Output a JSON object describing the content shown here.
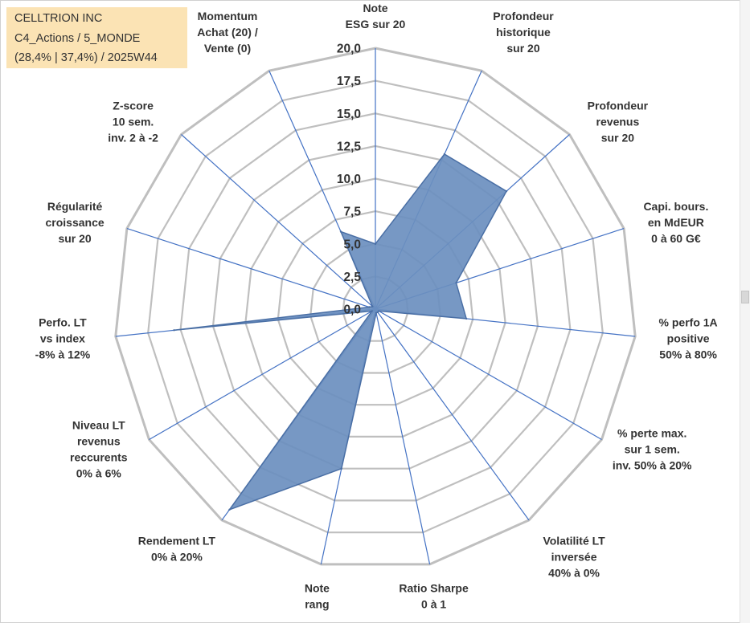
{
  "info_box": {
    "line1": "CELLTRION INC",
    "line2": "C4_Actions / 5_MONDE",
    "line3": "(28,4% | 37,4%) / 2025W44"
  },
  "colors": {
    "grid": "#bfbfbf",
    "spoke": "#4472c4",
    "fill": "#6b8fbf",
    "fill_stroke": "#4a6fa5",
    "info_bg": "#fbe3b4"
  },
  "chart_data": {
    "type": "radar",
    "rmin": 0,
    "rmax": 20,
    "tick_step": 2.5,
    "tick_labels": [
      "0,0",
      "2,5",
      "5,0",
      "7,5",
      "10,0",
      "12,5",
      "15,0",
      "17,5",
      "20,0"
    ],
    "grid": true,
    "axes": [
      {
        "label": [
          "Note",
          "ESG sur 20"
        ],
        "value": 5.0
      },
      {
        "label": [
          "Profondeur",
          "historique",
          "sur 20"
        ],
        "value": 13.0
      },
      {
        "label": [
          "Profondeur",
          "revenus",
          "sur 20"
        ],
        "value": 13.5
      },
      {
        "label": [
          "Capi. bours.",
          "en MdEUR",
          "0 à 60 G€"
        ],
        "value": 6.5
      },
      {
        "label": [
          "% perfo 1A",
          "positive",
          "50% à 80%"
        ],
        "value": 7.0
      },
      {
        "label": [
          "% perte max.",
          "sur 1 sem.",
          "inv. 50% à 20%"
        ],
        "value": 0.3
      },
      {
        "label": [
          "Volatilité LT",
          "inversée",
          "40% à 0%"
        ],
        "value": 0.3
      },
      {
        "label": [
          "Ratio Sharpe",
          "0 à 1"
        ],
        "value": 0.3
      },
      {
        "label": [
          "Note",
          "rang"
        ],
        "value": 12.5
      },
      {
        "label": [
          "Rendement LT",
          "0% à 20%"
        ],
        "value": 19.0
      },
      {
        "label": [
          "Niveau LT",
          "revenus",
          "reccurents",
          "0% à 6%"
        ],
        "value": 0.3
      },
      {
        "label": [
          "Perfo. LT",
          "vs index",
          "-8% à 12%"
        ],
        "value": 15.5
      },
      {
        "label": [
          "Régularité",
          "croissance",
          "sur 20"
        ],
        "value": 0.5
      },
      {
        "label": [
          "Z-score",
          "10 sem.",
          "inv. 2 à -2"
        ],
        "value": 0.3
      },
      {
        "label": [
          "Momentum",
          "Achat (20) /",
          "Vente (0)"
        ],
        "value": 6.5
      }
    ]
  }
}
